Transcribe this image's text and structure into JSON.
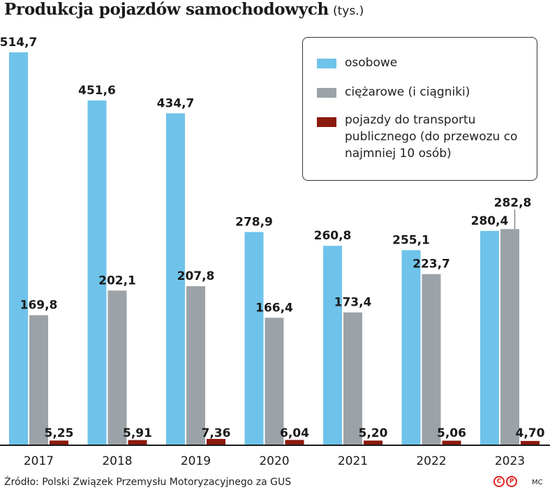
{
  "header": {
    "title": "Produkcja pojazdów samochodowych",
    "unit": "(tys.)"
  },
  "chart_data": {
    "type": "bar",
    "categories": [
      "2017",
      "2018",
      "2019",
      "2020",
      "2021",
      "2022",
      "2023"
    ],
    "series": [
      {
        "name": "osobowe",
        "color": "#6fc3ea",
        "values": [
          514.7,
          451.6,
          434.7,
          278.9,
          260.8,
          255.1,
          280.4
        ],
        "labels": [
          "514,7",
          "451,6",
          "434,7",
          "278,9",
          "260,8",
          "255,1",
          "280,4"
        ]
      },
      {
        "name": "ciężarowe (i ciągniki)",
        "color": "#9ba3a8",
        "values": [
          169.8,
          202.1,
          207.8,
          166.4,
          173.4,
          223.7,
          282.8
        ],
        "labels": [
          "169,8",
          "202,1",
          "207,8",
          "166,4",
          "173,4",
          "223,7",
          "282,8"
        ]
      },
      {
        "name": "pojazdy do transportu publicznego (do przewozu co najmniej 10 osób)",
        "color": "#8b1a0e",
        "values": [
          5.25,
          5.91,
          7.36,
          6.04,
          5.2,
          5.06,
          4.7
        ],
        "labels": [
          "5,25",
          "5,91",
          "7,36",
          "6,04",
          "5,20",
          "5,06",
          "4,70"
        ]
      }
    ],
    "ylim": [
      0,
      520
    ],
    "grid": false,
    "legend": "top-right"
  },
  "legend": {
    "items": [
      {
        "label": "osobowe",
        "color": "#6fc3ea"
      },
      {
        "label": "ciężarowe (i ciągniki)",
        "color": "#9ba3a8"
      },
      {
        "label": "pojazdy do transportu publicznego (do przewozu co najmniej 10 osób)",
        "color": "#8b1a0e"
      }
    ]
  },
  "footer": {
    "source": "Źródło: Polski Związek Przemysłu Motoryzacyjnego za GUS",
    "logo": [
      "C",
      "P"
    ],
    "author": "MC"
  }
}
